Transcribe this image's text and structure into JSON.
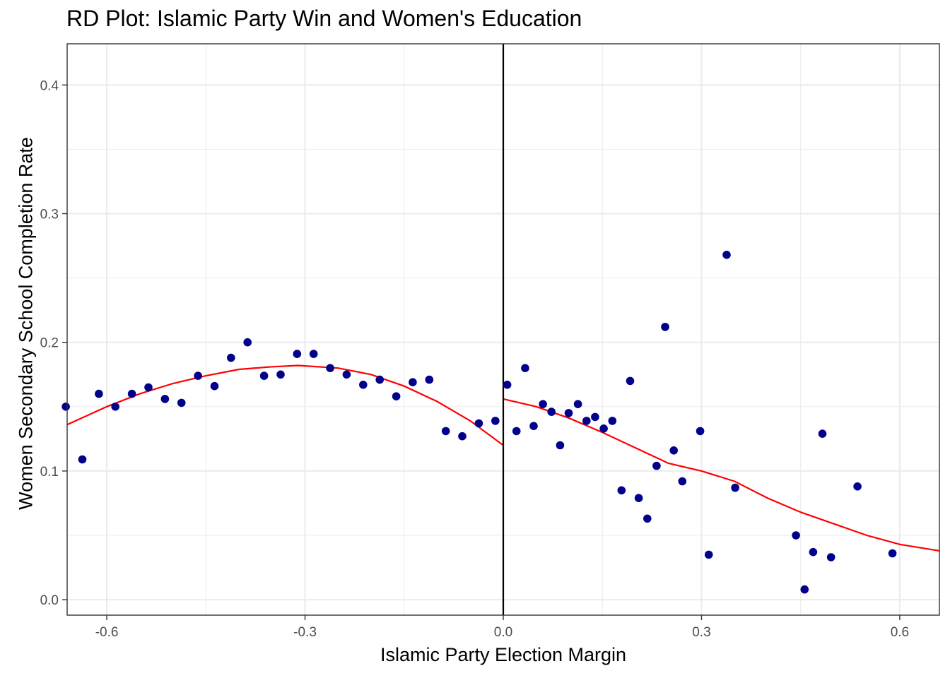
{
  "chart_data": {
    "type": "scatter",
    "title": "RD Plot: Islamic Party Win and Women's Education",
    "xlabel": "Islamic Party Election Margin",
    "ylabel": "Women Secondary School Completion Rate",
    "xlim": [
      -0.66,
      0.66
    ],
    "ylim": [
      -0.012,
      0.432
    ],
    "x_ticks": [
      -0.6,
      -0.3,
      0.0,
      0.3,
      0.6
    ],
    "x_tick_labels": [
      "-0.6",
      "-0.3",
      "0.0",
      "0.3",
      "0.6"
    ],
    "y_ticks": [
      0.0,
      0.1,
      0.2,
      0.3,
      0.4
    ],
    "y_tick_labels": [
      "0.0",
      "0.1",
      "0.2",
      "0.3",
      "0.4"
    ],
    "grid": true,
    "cutoff": 0.0,
    "colors": {
      "points": "#00008B",
      "fit": "#FF0000",
      "cutoff_line": "#000000",
      "grid": "#EBEBEB"
    },
    "points": [
      [
        -0.662,
        0.15
      ],
      [
        -0.637,
        0.109
      ],
      [
        -0.612,
        0.16
      ],
      [
        -0.587,
        0.15
      ],
      [
        -0.562,
        0.16
      ],
      [
        -0.537,
        0.165
      ],
      [
        -0.512,
        0.156
      ],
      [
        -0.487,
        0.153
      ],
      [
        -0.462,
        0.174
      ],
      [
        -0.437,
        0.166
      ],
      [
        -0.412,
        0.188
      ],
      [
        -0.387,
        0.2
      ],
      [
        -0.362,
        0.174
      ],
      [
        -0.337,
        0.175
      ],
      [
        -0.312,
        0.191
      ],
      [
        -0.287,
        0.191
      ],
      [
        -0.262,
        0.18
      ],
      [
        -0.237,
        0.175
      ],
      [
        -0.212,
        0.167
      ],
      [
        -0.187,
        0.171
      ],
      [
        -0.162,
        0.158
      ],
      [
        -0.137,
        0.169
      ],
      [
        -0.112,
        0.171
      ],
      [
        -0.087,
        0.131
      ],
      [
        -0.062,
        0.127
      ],
      [
        -0.037,
        0.137
      ],
      [
        -0.012,
        0.139
      ],
      [
        0.006,
        0.167
      ],
      [
        0.02,
        0.131
      ],
      [
        0.033,
        0.18
      ],
      [
        0.046,
        0.135
      ],
      [
        0.06,
        0.152
      ],
      [
        0.073,
        0.146
      ],
      [
        0.086,
        0.12
      ],
      [
        0.099,
        0.145
      ],
      [
        0.113,
        0.152
      ],
      [
        0.126,
        0.139
      ],
      [
        0.139,
        0.142
      ],
      [
        0.152,
        0.133
      ],
      [
        0.165,
        0.139
      ],
      [
        0.179,
        0.085
      ],
      [
        0.192,
        0.17
      ],
      [
        0.205,
        0.079
      ],
      [
        0.218,
        0.063
      ],
      [
        0.232,
        0.104
      ],
      [
        0.245,
        0.212
      ],
      [
        0.258,
        0.116
      ],
      [
        0.271,
        0.092
      ],
      [
        0.298,
        0.131
      ],
      [
        0.311,
        0.035
      ],
      [
        0.338,
        0.268
      ],
      [
        0.351,
        0.087
      ],
      [
        0.443,
        0.05
      ],
      [
        0.456,
        0.008
      ],
      [
        0.469,
        0.037
      ],
      [
        0.483,
        0.129
      ],
      [
        0.496,
        0.033
      ],
      [
        0.536,
        0.088
      ],
      [
        0.589,
        0.036
      ]
    ],
    "fit_left": [
      [
        -0.66,
        0.136
      ],
      [
        -0.6,
        0.15
      ],
      [
        -0.55,
        0.16
      ],
      [
        -0.5,
        0.168
      ],
      [
        -0.45,
        0.174
      ],
      [
        -0.4,
        0.179
      ],
      [
        -0.35,
        0.181
      ],
      [
        -0.31,
        0.182
      ],
      [
        -0.25,
        0.18
      ],
      [
        -0.2,
        0.175
      ],
      [
        -0.15,
        0.166
      ],
      [
        -0.1,
        0.154
      ],
      [
        -0.05,
        0.139
      ],
      [
        0.0,
        0.12
      ]
    ],
    "fit_right": [
      [
        0.0,
        0.156
      ],
      [
        0.05,
        0.15
      ],
      [
        0.1,
        0.141
      ],
      [
        0.15,
        0.13
      ],
      [
        0.2,
        0.118
      ],
      [
        0.25,
        0.106
      ],
      [
        0.3,
        0.1
      ],
      [
        0.35,
        0.092
      ],
      [
        0.4,
        0.079
      ],
      [
        0.45,
        0.068
      ],
      [
        0.5,
        0.059
      ],
      [
        0.55,
        0.05
      ],
      [
        0.6,
        0.043
      ],
      [
        0.66,
        0.038
      ]
    ]
  }
}
